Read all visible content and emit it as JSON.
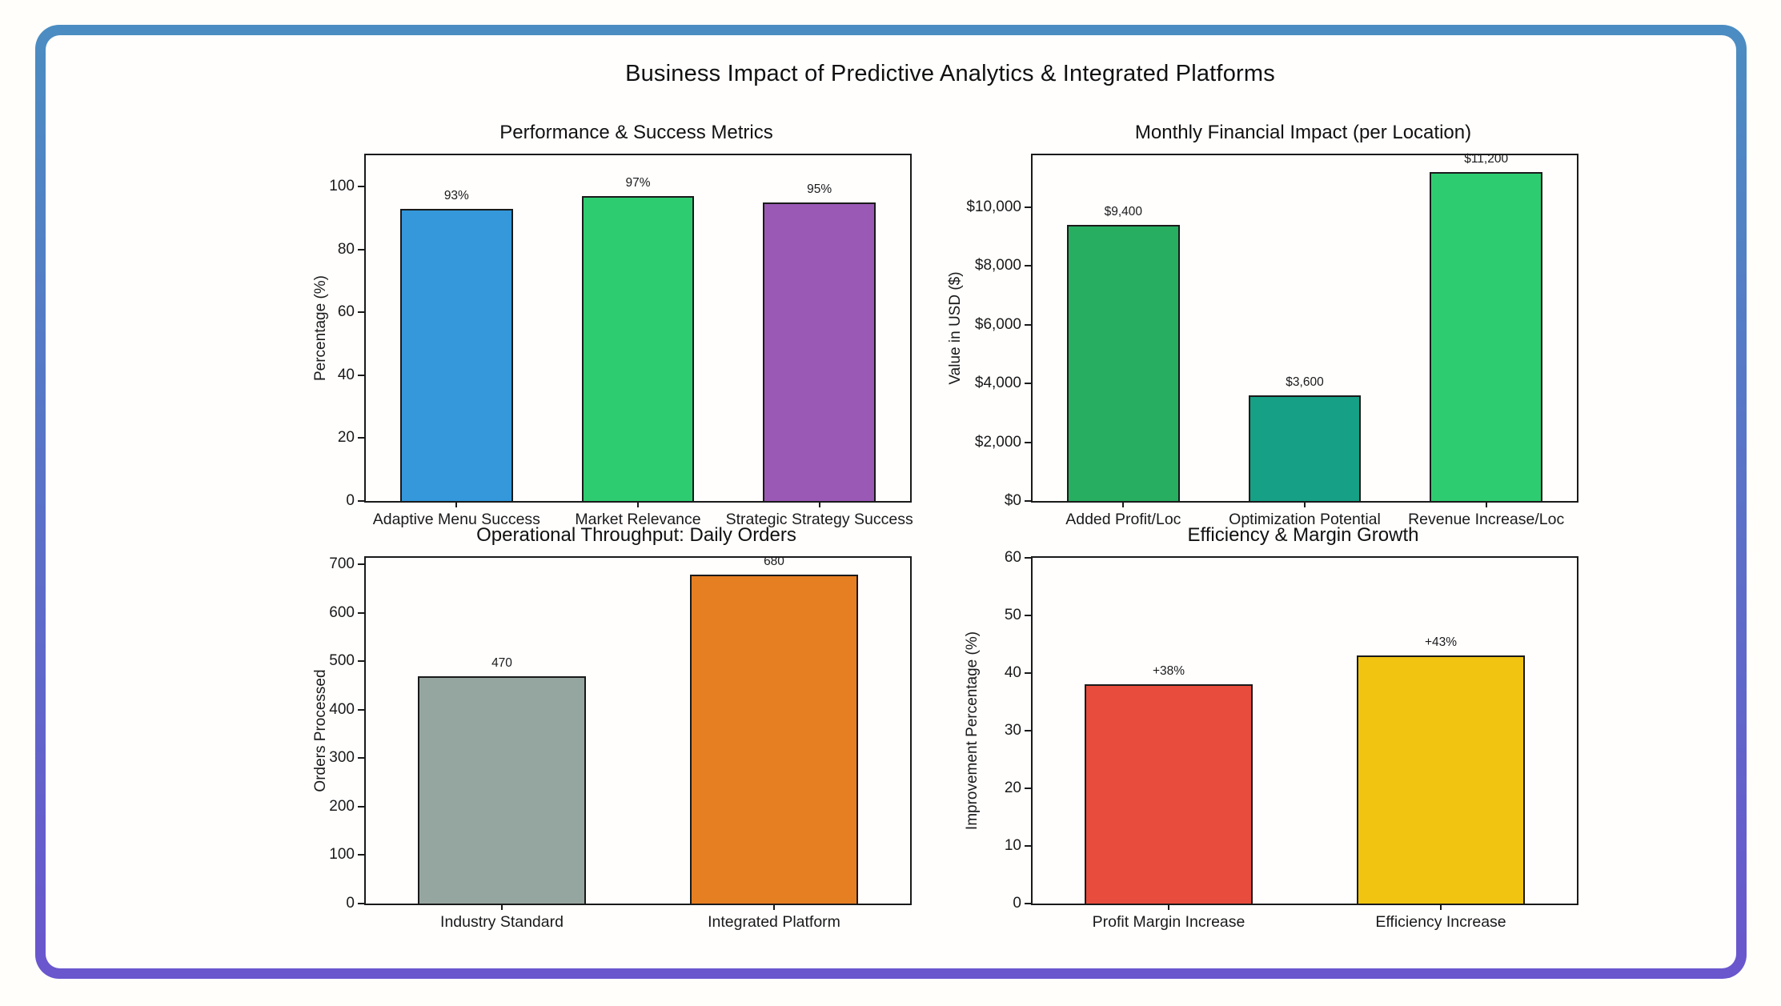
{
  "main_title": "Business Impact of Predictive Analytics & Integrated Platforms",
  "frame": {
    "border_gradient_top": "#4b8dc2",
    "border_gradient_bottom": "#6a56cd",
    "background": "#fffefd"
  },
  "chart_data": [
    {
      "type": "bar",
      "title": "Performance & Success Metrics",
      "xlabel": "",
      "ylabel": "Percentage (%)",
      "categories": [
        "Adaptive Menu Success",
        "Market Relevance",
        "Strategic Strategy Success"
      ],
      "values": [
        93,
        97,
        95
      ],
      "value_labels": [
        "93%",
        "97%",
        "95%"
      ],
      "bar_colors": [
        "#3498db",
        "#2ecc71",
        "#9b59b6"
      ],
      "bar_edge_color": "#1a1a1a",
      "ylim": [
        0,
        110
      ],
      "ytick_values": [
        0,
        20,
        40,
        60,
        80,
        100
      ],
      "ytick_labels": [
        "0",
        "20",
        "40",
        "60",
        "80",
        "100"
      ],
      "grid": false,
      "legend": null
    },
    {
      "type": "bar",
      "title": "Monthly Financial Impact (per Location)",
      "xlabel": "",
      "ylabel": "Value in USD ($)",
      "categories": [
        "Added Profit/Loc",
        "Optimization Potential",
        "Revenue Increase/Loc"
      ],
      "values": [
        9400,
        3600,
        11200
      ],
      "value_labels": [
        "$9,400",
        "$3,600",
        "$11,200"
      ],
      "bar_colors": [
        "#27ae60",
        "#16a085",
        "#2ecc71"
      ],
      "bar_edge_color": "#1a1a1a",
      "ylim": [
        0,
        11760
      ],
      "ytick_values": [
        0,
        2000,
        4000,
        6000,
        8000,
        10000
      ],
      "ytick_labels": [
        "$0",
        "$2,000",
        "$4,000",
        "$6,000",
        "$8,000",
        "$10,000"
      ],
      "grid": false,
      "legend": null
    },
    {
      "type": "bar",
      "title": "Operational Throughput: Daily Orders",
      "xlabel": "",
      "ylabel": "Orders Processed",
      "categories": [
        "Industry Standard",
        "Integrated Platform"
      ],
      "values": [
        470,
        680
      ],
      "value_labels": [
        "470",
        "680"
      ],
      "bar_colors": [
        "#95a5a0",
        "#e67e22"
      ],
      "bar_edge_color": "#1a1a1a",
      "ylim": [
        0,
        714
      ],
      "ytick_values": [
        0,
        100,
        200,
        300,
        400,
        500,
        600,
        700
      ],
      "ytick_labels": [
        "0",
        "100",
        "200",
        "300",
        "400",
        "500",
        "600",
        "700"
      ],
      "grid": false,
      "legend": null
    },
    {
      "type": "bar",
      "title": "Efficiency & Margin Growth",
      "xlabel": "",
      "ylabel": "Improvement Percentage (%)",
      "categories": [
        "Profit Margin Increase",
        "Efficiency Increase"
      ],
      "values": [
        38,
        43
      ],
      "value_labels": [
        "+38%",
        "+43%"
      ],
      "bar_colors": [
        "#e74c3c",
        "#f0c410"
      ],
      "bar_edge_color": "#1a1a1a",
      "ylim": [
        0,
        60
      ],
      "ytick_values": [
        0,
        10,
        20,
        30,
        40,
        50,
        60
      ],
      "ytick_labels": [
        "0",
        "10",
        "20",
        "30",
        "40",
        "50",
        "60"
      ],
      "grid": false,
      "legend": null
    }
  ]
}
